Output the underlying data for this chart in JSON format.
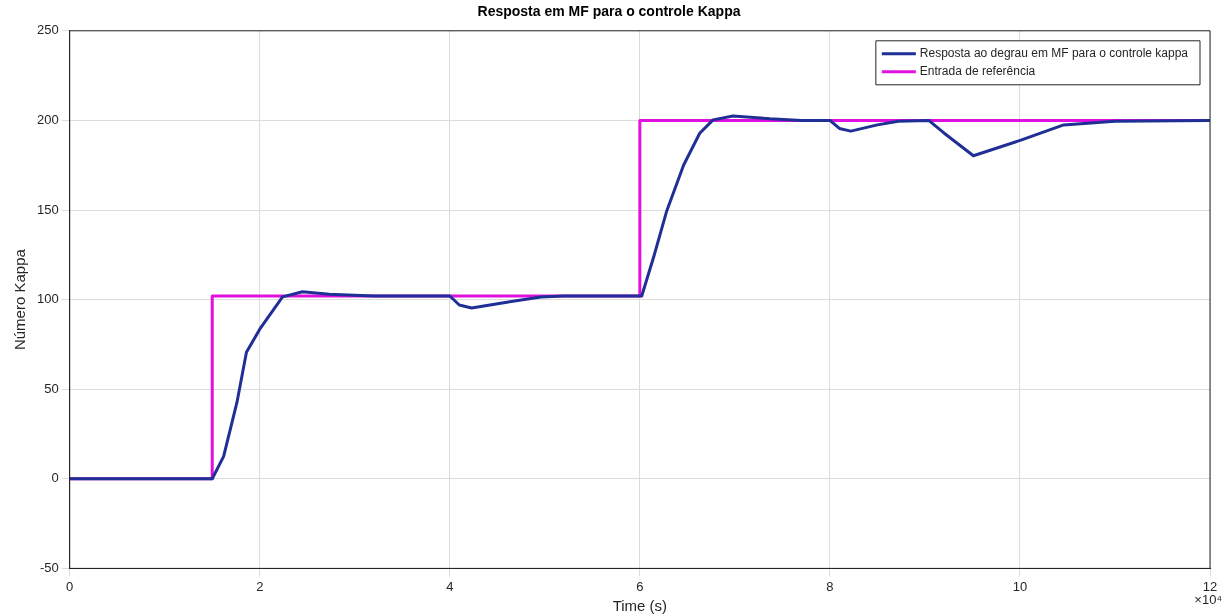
{
  "chart_data": {
    "type": "line",
    "title": "Resposta em MF para o controle Kappa",
    "xlabel": "Time (s)",
    "ylabel": "Número Kappa",
    "annotations": [
      "×10⁴"
    ],
    "xlim": [
      0,
      12
    ],
    "xticks": [
      0,
      2,
      4,
      6,
      8,
      10,
      12
    ],
    "ylim": [
      -50,
      250
    ],
    "yticks": [
      -50,
      0,
      50,
      100,
      150,
      200,
      250
    ],
    "grid": true,
    "legend": "top right",
    "marker": "none",
    "line_style": "solid",
    "series": [
      {
        "name": "Resposta ao degrau em MF para o controle kappa",
        "color": "#1f2f96",
        "x": [
          0,
          1.5,
          1.62,
          1.76,
          1.86,
          2.0,
          2.24,
          2.45,
          2.73,
          3.2,
          4.0,
          4.1,
          4.23,
          4.6,
          4.96,
          5.2,
          6.0,
          6.02,
          6.15,
          6.28,
          6.46,
          6.63,
          6.77,
          6.98,
          7.37,
          7.7,
          8.0,
          8.1,
          8.22,
          8.5,
          8.72,
          9.04,
          9.2,
          9.51,
          10.01,
          10.46,
          11.0,
          12.0
        ],
        "values": [
          0,
          0,
          12.5,
          42.6,
          70.6,
          83.5,
          101.5,
          104.4,
          103,
          102,
          102,
          97,
          95.3,
          98.5,
          101.5,
          102,
          102,
          102,
          124.6,
          149,
          175,
          192.8,
          200.3,
          202.5,
          200.9,
          200,
          200,
          195.5,
          194,
          197.5,
          199.5,
          200,
          193,
          180.3,
          189,
          197.5,
          199.5,
          200
        ]
      },
      {
        "name": "Entrada de referência",
        "color": "#e010e0",
        "x": [
          0,
          1.5,
          1.5,
          6,
          6,
          12
        ],
        "values": [
          0,
          0,
          102,
          102,
          200,
          200
        ]
      }
    ]
  }
}
